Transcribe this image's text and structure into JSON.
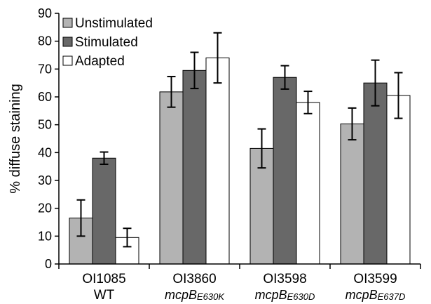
{
  "chart_data": {
    "type": "bar",
    "ylabel": "% diffuse staining",
    "ylim": [
      0,
      90
    ],
    "yticks": [
      0,
      10,
      20,
      30,
      40,
      50,
      60,
      70,
      80,
      90
    ],
    "grid": false,
    "legend_position": "top-left",
    "categories": [
      {
        "label": "OI1085",
        "sub_main": "WT",
        "sub_small": ""
      },
      {
        "label": "OI3860",
        "sub_main": "mcpB",
        "sub_small": "E630K"
      },
      {
        "label": "OI3598",
        "sub_main": "mcpB",
        "sub_small": "E630D"
      },
      {
        "label": "OI3599",
        "sub_main": "mcpB",
        "sub_small": "E637D"
      }
    ],
    "series": [
      {
        "name": "Unstimulated",
        "color": "#b3b3b3",
        "values": [
          16.5,
          61.8,
          41.5,
          50.3
        ],
        "errors": [
          6.5,
          5.5,
          7.0,
          5.7
        ]
      },
      {
        "name": "Stimulated",
        "color": "#686868",
        "values": [
          38.0,
          69.5,
          67.0,
          65.0
        ],
        "errors": [
          2.2,
          6.5,
          4.2,
          8.2
        ]
      },
      {
        "name": "Adapted",
        "color": "#ffffff",
        "values": [
          9.5,
          74.0,
          58.0,
          60.5
        ],
        "errors": [
          3.3,
          9.0,
          4.0,
          8.2
        ]
      }
    ]
  }
}
